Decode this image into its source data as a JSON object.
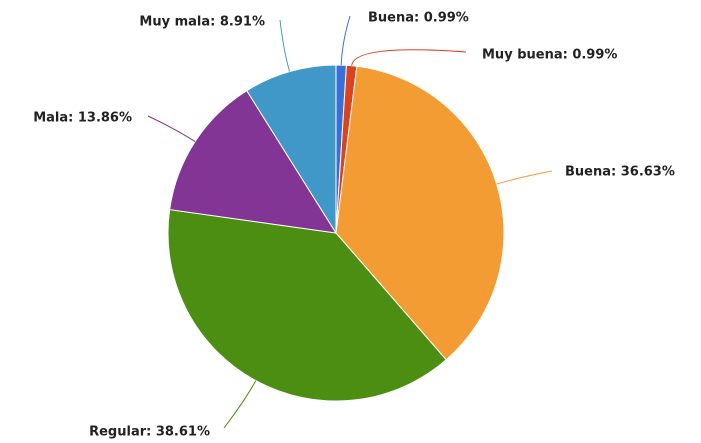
{
  "chart_data": {
    "type": "pie",
    "values": [
      0.99,
      0.99,
      36.63,
      38.61,
      13.86,
      8.91
    ],
    "value_labels": [
      "Buena: 0.99%",
      "Muy buena: 0.99%",
      "Buena: 36.63%",
      "Regular: 38.61%",
      "Mala: 13.86%",
      "Muy mala: 8.91%"
    ],
    "colors": [
      "#3a6fd8",
      "#d9441f",
      "#f39c34",
      "#4b8e12",
      "#833596",
      "#4098c8"
    ]
  }
}
